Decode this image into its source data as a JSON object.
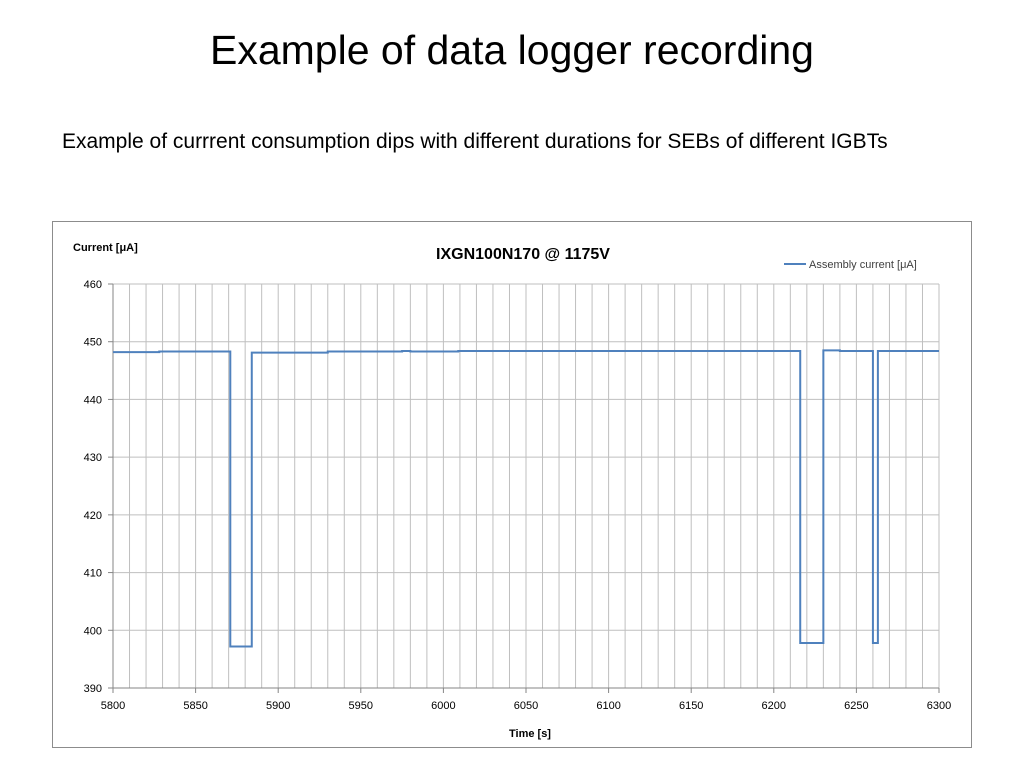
{
  "slide": {
    "title": "Example of data logger recording",
    "text": "Example of currrent consumption dips with different durations for SEBs of different IGBTs"
  },
  "chart_data": {
    "type": "line",
    "title": "IXGN100N170 @ 1175V",
    "xlabel": "Time [s]",
    "ylabel": "Current [μA]",
    "xlim": [
      5800,
      6300
    ],
    "ylim": [
      390,
      460
    ],
    "xticks": [
      5800,
      5850,
      5900,
      5950,
      6000,
      6050,
      6100,
      6150,
      6200,
      6250,
      6300
    ],
    "yticks": [
      390,
      400,
      410,
      420,
      430,
      440,
      450,
      460
    ],
    "x_minor_step": 10,
    "grid": true,
    "legend_position": "top-right",
    "series": [
      {
        "name": "Assembly current [μA]",
        "color": "#4f81bd",
        "x": [
          5800,
          5828,
          5828,
          5871,
          5871,
          5884,
          5884,
          5930,
          5930,
          5975,
          5975,
          5980,
          5980,
          6009,
          6009,
          6216,
          6216,
          6230,
          6230,
          6240,
          6240,
          6260,
          6260,
          6263,
          6263,
          6300
        ],
        "y": [
          448.2,
          448.2,
          448.3,
          448.3,
          397.2,
          397.2,
          448.1,
          448.1,
          448.3,
          448.3,
          448.4,
          448.4,
          448.3,
          448.3,
          448.4,
          448.4,
          397.8,
          397.8,
          448.5,
          448.5,
          448.4,
          448.4,
          397.8,
          397.8,
          448.4,
          448.4
        ]
      }
    ]
  }
}
